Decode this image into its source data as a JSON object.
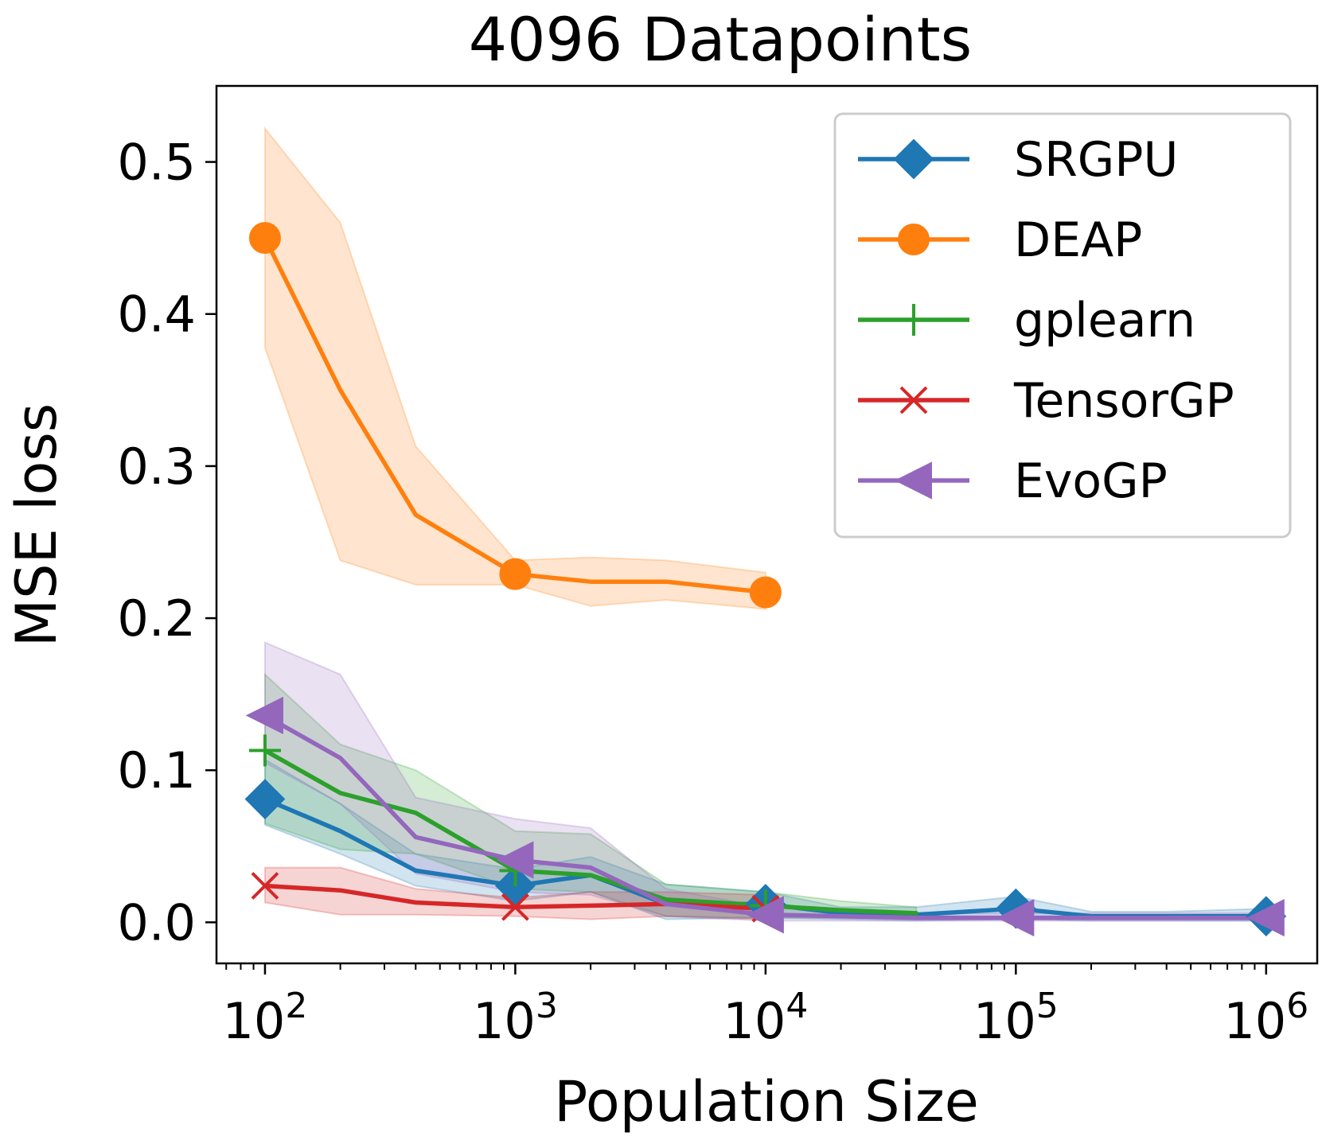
{
  "chart_data": {
    "type": "line",
    "title": "4096 Datapoints",
    "xlabel": "Population Size",
    "ylabel": "MSE loss",
    "xscale": "log",
    "xlim": [
      64,
      1600000
    ],
    "ylim": [
      -0.027,
      0.55
    ],
    "xticks": [
      {
        "value": 100,
        "base": "10",
        "exp": "2"
      },
      {
        "value": 1000,
        "base": "10",
        "exp": "3"
      },
      {
        "value": 10000,
        "base": "10",
        "exp": "4"
      },
      {
        "value": 100000,
        "base": "10",
        "exp": "5"
      },
      {
        "value": 1000000,
        "base": "10",
        "exp": "6"
      }
    ],
    "yticks": [
      {
        "value": 0.0,
        "label": "0.0"
      },
      {
        "value": 0.1,
        "label": "0.1"
      },
      {
        "value": 0.2,
        "label": "0.2"
      },
      {
        "value": 0.3,
        "label": "0.3"
      },
      {
        "value": 0.4,
        "label": "0.4"
      },
      {
        "value": 0.5,
        "label": "0.5"
      }
    ],
    "grid": false,
    "legend_position": "top-right",
    "series": [
      {
        "name": "SRGPU",
        "color": "#1f77b4",
        "marker": "diamond",
        "x": [
          100,
          200,
          400,
          1000,
          2000,
          4000,
          10000,
          20000,
          40000,
          100000,
          200000,
          400000,
          1000000
        ],
        "y": [
          0.081,
          0.06,
          0.034,
          0.024,
          0.031,
          0.012,
          0.012,
          0.006,
          0.005,
          0.009,
          0.004,
          0.004,
          0.004
        ],
        "lower": [
          0.064,
          0.045,
          0.024,
          0.014,
          0.02,
          0.002,
          0.003,
          0.002,
          0.001,
          0.002,
          0.001,
          0.001,
          0.001
        ],
        "upper": [
          0.107,
          0.078,
          0.045,
          0.035,
          0.043,
          0.025,
          0.02,
          0.01,
          0.01,
          0.017,
          0.007,
          0.007,
          0.009
        ],
        "marker_x": [
          100,
          1000,
          10000,
          100000,
          1000000
        ]
      },
      {
        "name": "DEAP",
        "color": "#ff7f0e",
        "marker": "circle",
        "x": [
          100,
          200,
          400,
          1000,
          2000,
          4000,
          10000
        ],
        "y": [
          0.45,
          0.35,
          0.268,
          0.229,
          0.224,
          0.224,
          0.217
        ],
        "lower": [
          0.378,
          0.238,
          0.222,
          0.222,
          0.208,
          0.212,
          0.206
        ],
        "upper": [
          0.522,
          0.46,
          0.313,
          0.238,
          0.24,
          0.238,
          0.23
        ],
        "marker_x": [
          100,
          1000,
          10000
        ]
      },
      {
        "name": "gplearn",
        "color": "#2ca02c",
        "marker": "plus",
        "x": [
          100,
          200,
          400,
          1000,
          2000,
          4000,
          10000,
          20000,
          40000
        ],
        "y": [
          0.113,
          0.085,
          0.072,
          0.034,
          0.031,
          0.015,
          0.011,
          0.008,
          0.006
        ],
        "lower": [
          0.065,
          0.048,
          0.045,
          0.022,
          0.02,
          0.004,
          0.003,
          0.003,
          0.002
        ],
        "upper": [
          0.163,
          0.117,
          0.1,
          0.06,
          0.058,
          0.025,
          0.02,
          0.014,
          0.01
        ],
        "marker_x": [
          100,
          1000,
          10000
        ]
      },
      {
        "name": "TensorGP",
        "color": "#d62728",
        "marker": "x",
        "x": [
          100,
          200,
          400,
          1000,
          2000,
          4000,
          10000
        ],
        "y": [
          0.024,
          0.021,
          0.013,
          0.01,
          0.011,
          0.012,
          0.009
        ],
        "lower": [
          0.013,
          0.005,
          0.005,
          0.004,
          0.002,
          0.004,
          0.002
        ],
        "upper": [
          0.036,
          0.036,
          0.022,
          0.016,
          0.02,
          0.02,
          0.018
        ],
        "marker_x": [
          100,
          1000,
          10000
        ]
      },
      {
        "name": "EvoGP",
        "color": "#9467bd",
        "marker": "triangle-left",
        "x": [
          100,
          200,
          400,
          1000,
          2000,
          4000,
          10000,
          20000,
          40000,
          100000,
          200000,
          400000,
          1000000
        ],
        "y": [
          0.136,
          0.108,
          0.056,
          0.041,
          0.036,
          0.012,
          0.005,
          0.004,
          0.003,
          0.003,
          0.003,
          0.003,
          0.003
        ],
        "lower": [
          0.105,
          0.078,
          0.032,
          0.02,
          0.018,
          0.004,
          0.001,
          0.001,
          0.001,
          0.001,
          0.001,
          0.001,
          0.001
        ],
        "upper": [
          0.184,
          0.163,
          0.082,
          0.068,
          0.062,
          0.022,
          0.01,
          0.007,
          0.006,
          0.006,
          0.006,
          0.006,
          0.006
        ],
        "marker_x": [
          100,
          1000,
          10000,
          100000,
          1000000
        ]
      }
    ]
  }
}
